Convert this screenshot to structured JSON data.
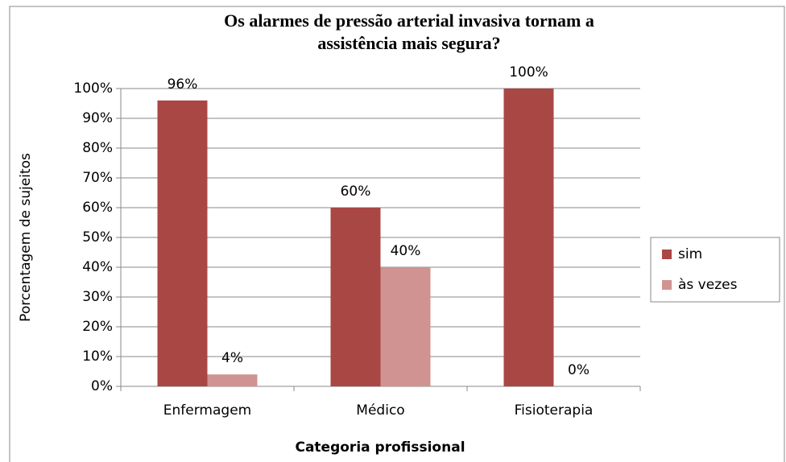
{
  "chart_data": {
    "type": "bar",
    "title": [
      "Os alarmes de pressão arterial invasiva tornam a",
      "assistência mais segura?"
    ],
    "x_label": "Categoria profissional",
    "y_label": "Porcentagem de sujeitos",
    "categories": [
      "Enfermagem",
      "Médico",
      "Fisioterapia"
    ],
    "series": [
      {
        "name": "sim",
        "color": "#a94744",
        "values": [
          96,
          60,
          100
        ],
        "value_labels": [
          "96%",
          "60%",
          "100%"
        ]
      },
      {
        "name": "às vezes",
        "color": "#d09391",
        "values": [
          4,
          40,
          0
        ],
        "value_labels": [
          "4%",
          "40%",
          "0%"
        ]
      }
    ],
    "ylim": [
      0,
      100
    ],
    "yticks": [
      {
        "value": 0,
        "label": "0%"
      },
      {
        "value": 10,
        "label": "10%"
      },
      {
        "value": 20,
        "label": "20%"
      },
      {
        "value": 30,
        "label": "30%"
      },
      {
        "value": 40,
        "label": "40%"
      },
      {
        "value": 50,
        "label": "50%"
      },
      {
        "value": 60,
        "label": "60%"
      },
      {
        "value": 70,
        "label": "70%"
      },
      {
        "value": 80,
        "label": "80%"
      },
      {
        "value": 90,
        "label": "90%"
      },
      {
        "value": 100,
        "label": "100%"
      }
    ],
    "grid": true,
    "legend": "right"
  }
}
